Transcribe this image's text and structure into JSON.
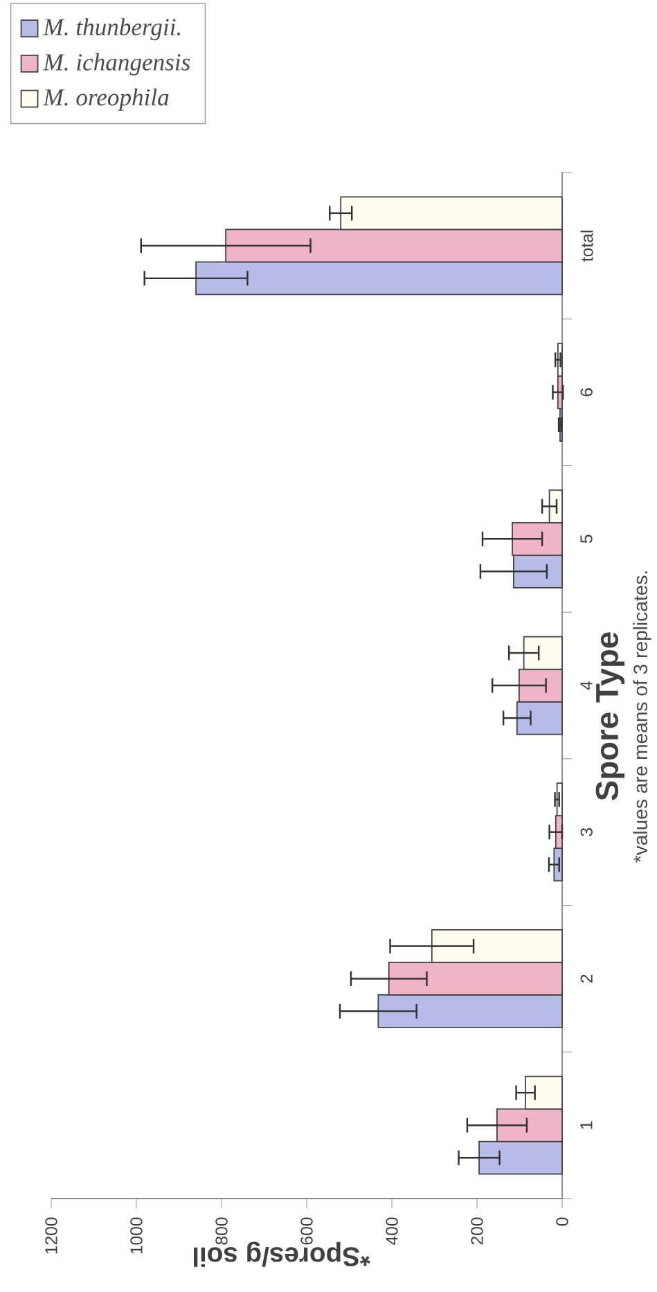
{
  "chart_data": {
    "type": "bar",
    "orientation": "horizontal",
    "categories": [
      "total",
      "6",
      "5",
      "4",
      "3",
      "2",
      "1"
    ],
    "series": [
      {
        "name": "M. thunbergii.",
        "color": "#b8bce8",
        "values": [
          860,
          5,
          114,
          106,
          19,
          432,
          195
        ],
        "errors": [
          121,
          3,
          78,
          32,
          12,
          90,
          48
        ]
      },
      {
        "name": "M. ichangensis",
        "color": "#f0b4c8",
        "values": [
          790,
          10,
          117,
          101,
          15,
          407,
          153
        ],
        "errors": [
          199,
          12,
          70,
          63,
          15,
          89,
          70
        ]
      },
      {
        "name": "M. oreophila",
        "color": "#fdfdf0",
        "values": [
          520,
          10,
          30,
          90,
          12,
          306,
          86
        ],
        "errors": [
          26,
          6,
          17,
          35,
          5,
          98,
          22
        ]
      }
    ],
    "ylabel": "Spore Type",
    "xlabel": "*Spores/g soil",
    "annotations": [
      "*values are means of 3 replicates."
    ],
    "xlim": [
      1200,
      0
    ],
    "xticks": [
      0,
      200,
      400,
      600,
      800,
      1000,
      1200
    ],
    "legend": "top left"
  }
}
